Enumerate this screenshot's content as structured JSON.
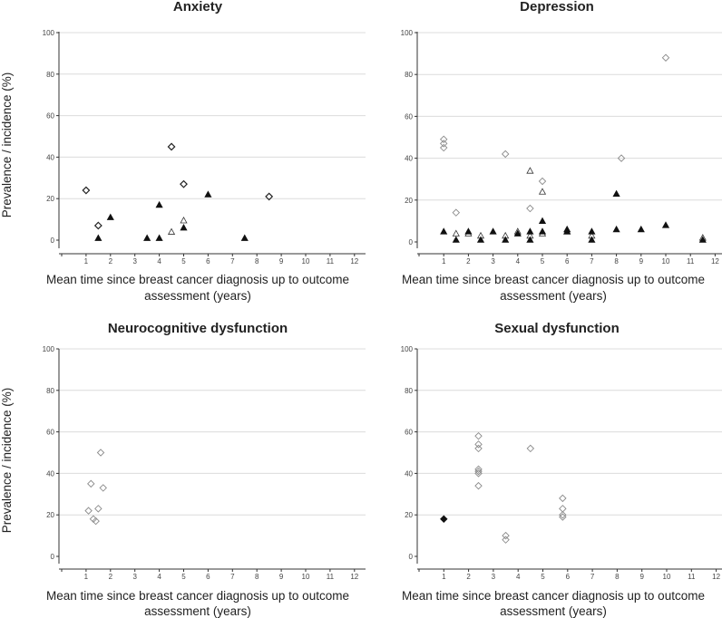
{
  "chart_data": [
    {
      "type": "scatter",
      "title": "Anxiety",
      "xlabel_line1": "Mean time since breast cancer diagnosis up to outcome",
      "xlabel_line2": "assessment (years)",
      "ylabel": "Prevalence / incidence (%)",
      "xlim": [
        0,
        12
      ],
      "ylim": [
        0,
        100
      ],
      "xticks": [
        1,
        2,
        3,
        4,
        5,
        6,
        7,
        8,
        9,
        10,
        11,
        12
      ],
      "yticks": [
        0,
        20,
        40,
        60,
        80,
        100
      ],
      "grid": true,
      "series": [
        {
          "name": "open diamond",
          "marker": "diamond-open",
          "x": [
            1,
            1.5,
            4.5,
            5,
            8.5
          ],
          "y": [
            24,
            7,
            45,
            27,
            21
          ]
        },
        {
          "name": "open triangle",
          "marker": "triangle-open",
          "x": [
            4.5,
            5
          ],
          "y": [
            4,
            9.5
          ]
        },
        {
          "name": "filled triangle",
          "marker": "triangle-filled",
          "x": [
            1.5,
            2,
            3.5,
            4,
            4,
            5,
            6,
            7.5
          ],
          "y": [
            1,
            11,
            1,
            17,
            1,
            6,
            22,
            1
          ]
        }
      ]
    },
    {
      "type": "scatter",
      "title": "Depression",
      "xlabel_line1": "Mean time since breast cancer diagnosis up to outcome",
      "xlabel_line2": "assessment (years)",
      "ylabel": "",
      "xlim": [
        0,
        12
      ],
      "ylim": [
        0,
        100
      ],
      "xticks": [
        1,
        2,
        3,
        4,
        5,
        6,
        7,
        8,
        9,
        10,
        11,
        12
      ],
      "yticks": [
        0,
        20,
        40,
        60,
        80,
        100
      ],
      "grid": true,
      "series": [
        {
          "name": "open diamond",
          "marker": "diamond-open",
          "x": [
            1,
            1,
            1,
            1.5,
            3.5,
            4.5,
            5,
            8.2,
            10
          ],
          "y": [
            49,
            47,
            45,
            14,
            42,
            16,
            29,
            40,
            88
          ]
        },
        {
          "name": "open triangle",
          "marker": "triangle-open",
          "x": [
            1.5,
            2,
            2.5,
            3.5,
            4,
            4.5,
            4.5,
            5,
            5,
            6,
            7,
            11.5
          ],
          "y": [
            4,
            4,
            3,
            3,
            5,
            34,
            3,
            24,
            4,
            5,
            3,
            2
          ]
        },
        {
          "name": "filled triangle",
          "marker": "triangle-filled",
          "x": [
            1,
            1.5,
            2,
            2.5,
            3,
            3.5,
            4,
            4.5,
            4.5,
            5,
            5,
            6,
            6,
            7,
            7,
            8,
            8,
            9,
            10,
            11.5
          ],
          "y": [
            5,
            1,
            5,
            1,
            5,
            1,
            4,
            5,
            1,
            10,
            5,
            5,
            6,
            5,
            1,
            23,
            6,
            6,
            8,
            1
          ]
        }
      ]
    },
    {
      "type": "scatter",
      "title": "Neurocognitive dysfunction",
      "xlabel_line1": "Mean time since breast cancer diagnosis up to outcome",
      "xlabel_line2": "assessment (years)",
      "ylabel": "Prevalence / incidence (%)",
      "xlim": [
        0,
        12
      ],
      "ylim": [
        0,
        100
      ],
      "xticks": [
        1,
        2,
        3,
        4,
        5,
        6,
        7,
        8,
        9,
        10,
        11,
        12
      ],
      "yticks": [
        0,
        20,
        40,
        60,
        80,
        100
      ],
      "grid": true,
      "series": [
        {
          "name": "open diamond",
          "marker": "diamond-open",
          "x": [
            1.1,
            1.2,
            1.3,
            1.4,
            1.5,
            1.6,
            1.7
          ],
          "y": [
            22,
            35,
            18,
            17,
            23,
            50,
            33
          ]
        }
      ]
    },
    {
      "type": "scatter",
      "title": "Sexual dysfunction",
      "xlabel_line1": "Mean time since breast cancer diagnosis up to outcome",
      "xlabel_line2": "assessment (years)",
      "ylabel": "",
      "xlim": [
        0,
        12
      ],
      "ylim": [
        0,
        100
      ],
      "xticks": [
        1,
        2,
        3,
        4,
        5,
        6,
        7,
        8,
        9,
        10,
        11,
        12
      ],
      "yticks": [
        0,
        20,
        40,
        60,
        80,
        100
      ],
      "grid": true,
      "series": [
        {
          "name": "open diamond",
          "marker": "diamond-open",
          "x": [
            2.4,
            2.4,
            2.4,
            2.4,
            2.4,
            2.4,
            2.4,
            3.5,
            3.5,
            4.5,
            5.8,
            5.8,
            5.8,
            5.8
          ],
          "y": [
            58,
            54,
            52,
            42,
            40,
            34,
            41,
            10,
            8,
            52,
            28,
            23,
            20,
            19
          ]
        },
        {
          "name": "filled diamond",
          "marker": "diamond-filled",
          "x": [
            1
          ],
          "y": [
            18
          ]
        }
      ]
    }
  ]
}
